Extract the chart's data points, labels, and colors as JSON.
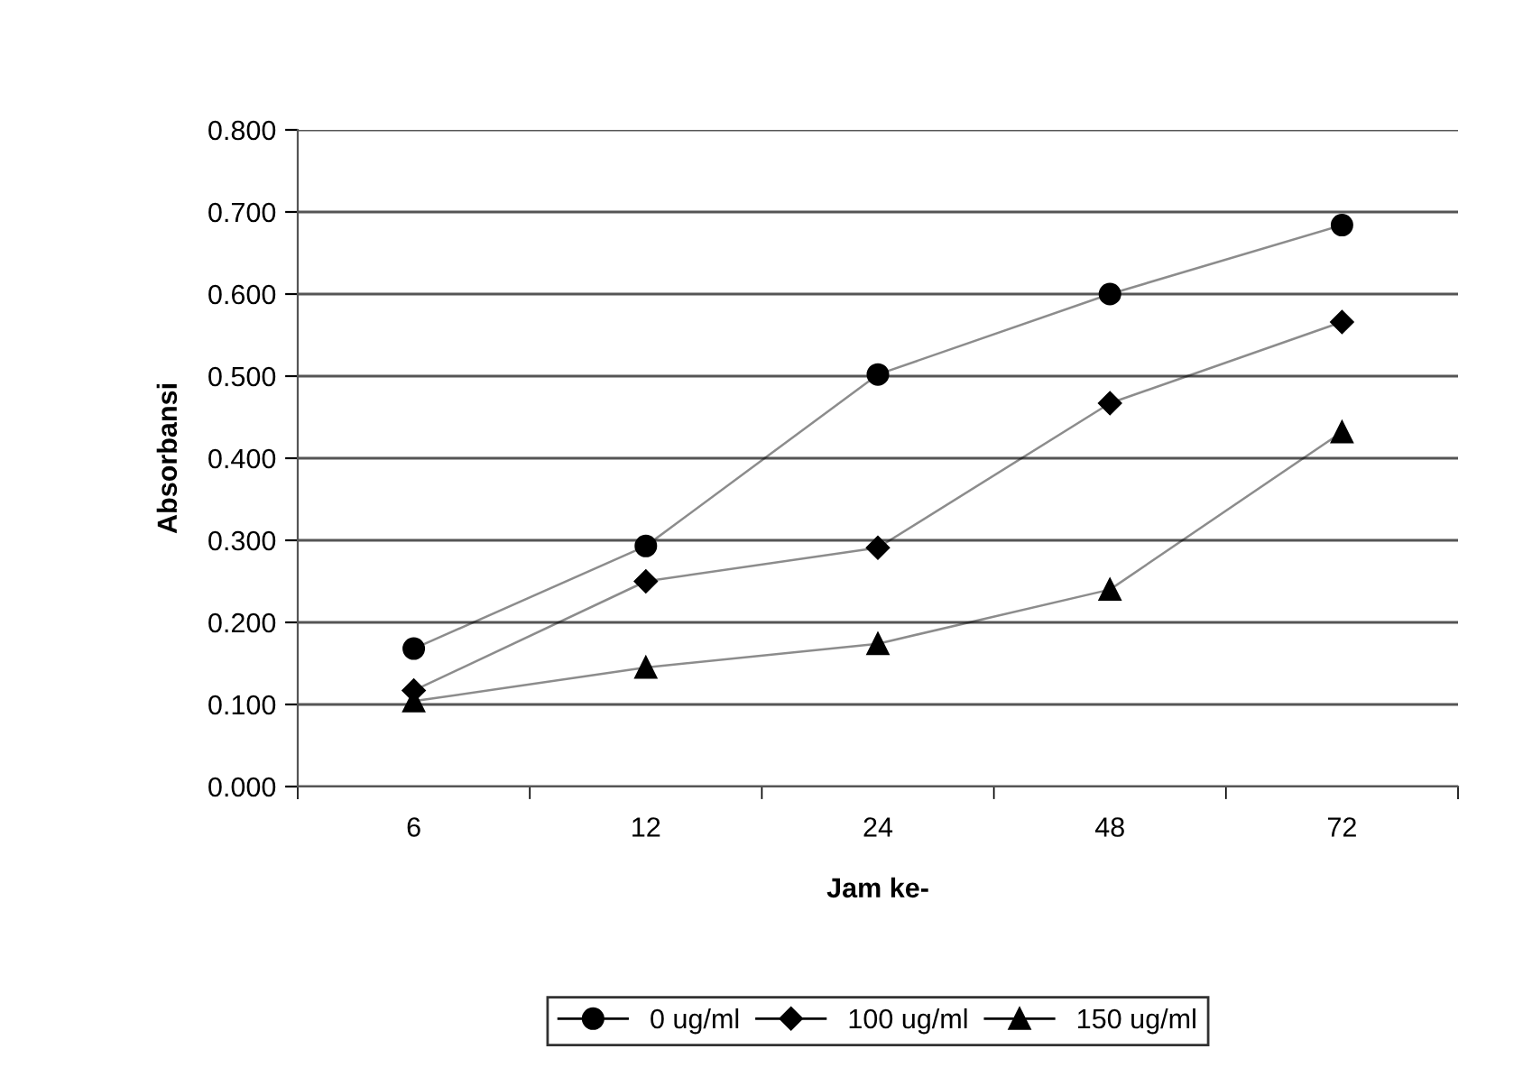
{
  "chart_data": {
    "type": "line",
    "xlabel": "Jam ke-",
    "ylabel": "Absorbansi",
    "categories": [
      "6",
      "12",
      "24",
      "48",
      "72"
    ],
    "series": [
      {
        "name": "0 ug/ml",
        "color": "#000000",
        "marker": "circle",
        "values": [
          0.168,
          0.293,
          0.502,
          0.6,
          0.684
        ]
      },
      {
        "name": "100 ug/ml",
        "color": "#000000",
        "marker": "diamond",
        "values": [
          0.117,
          0.25,
          0.291,
          0.467,
          0.566
        ]
      },
      {
        "name": "150 ug/ml",
        "color": "#000000",
        "marker": "triangle",
        "values": [
          0.104,
          0.145,
          0.174,
          0.24,
          0.432
        ]
      }
    ],
    "ylim": [
      0,
      0.8
    ],
    "yticks": [
      {
        "value": 0,
        "label": "0.000"
      },
      {
        "value": 0.1,
        "label": "0.100"
      },
      {
        "value": 0.2,
        "label": "0.200"
      },
      {
        "value": 0.3,
        "label": "0.300"
      },
      {
        "value": 0.4,
        "label": "0.400"
      },
      {
        "value": 0.5,
        "label": "0.500"
      },
      {
        "value": 0.6,
        "label": "0.600"
      },
      {
        "value": 0.7,
        "label": "0.700"
      },
      {
        "value": 0.8,
        "label": "0.800"
      }
    ],
    "grid": "y",
    "legend": "bottom"
  }
}
